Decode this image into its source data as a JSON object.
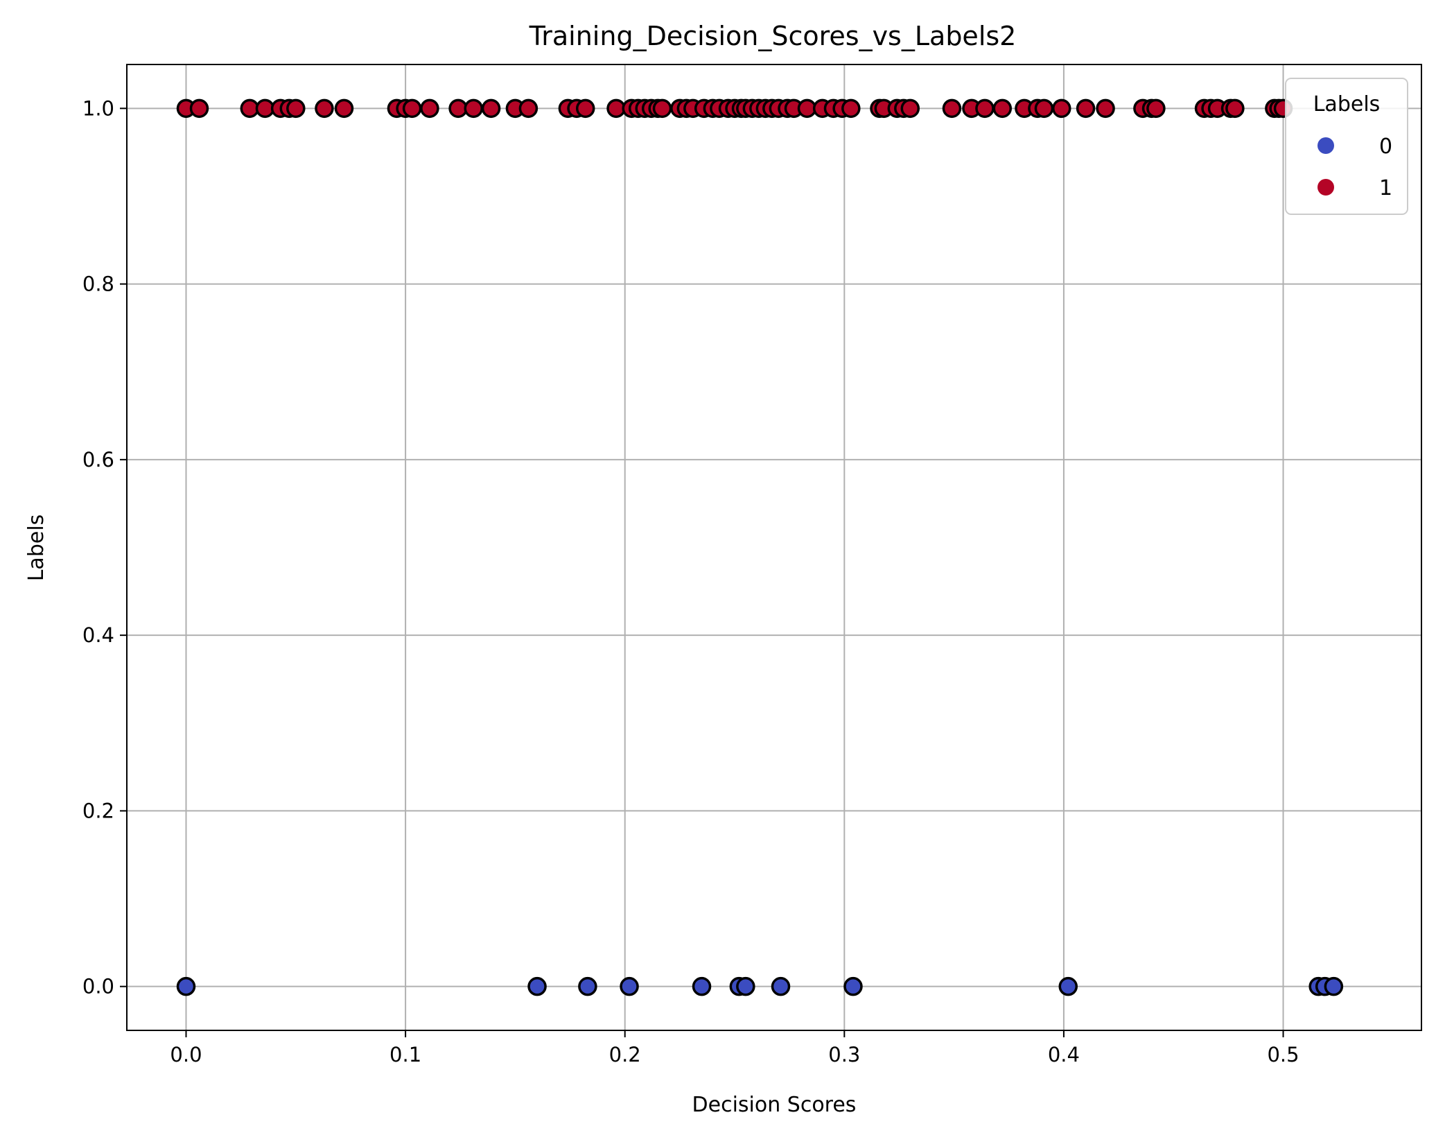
{
  "chart_data": {
    "type": "scatter",
    "title": "Training_Decision_Scores_vs_Labels2",
    "xlabel": "Decision Scores",
    "ylabel": "Labels",
    "xlim": [
      -0.027,
      0.563
    ],
    "ylim": [
      -0.05,
      1.05
    ],
    "x_ticks": [
      0.0,
      0.1,
      0.2,
      0.3,
      0.4,
      0.5
    ],
    "x_tick_labels": [
      "0.0",
      "0.1",
      "0.2",
      "0.3",
      "0.4",
      "0.5"
    ],
    "y_ticks": [
      0.0,
      0.2,
      0.4,
      0.6,
      0.8,
      1.0
    ],
    "y_tick_labels": [
      "0.0",
      "0.2",
      "0.4",
      "0.6",
      "0.8",
      "1.0"
    ],
    "grid": true,
    "legend": {
      "title": "Labels",
      "position": "top-right"
    },
    "series": [
      {
        "name": "0",
        "color": "#3b4cc0",
        "y": 0,
        "x": [
          0.0,
          0.16,
          0.183,
          0.202,
          0.235,
          0.252,
          0.255,
          0.271,
          0.304,
          0.402,
          0.516,
          0.519,
          0.523
        ]
      },
      {
        "name": "1",
        "color": "#b40426",
        "y": 1,
        "x": [
          0.0,
          0.006,
          0.029,
          0.036,
          0.043,
          0.047,
          0.05,
          0.063,
          0.072,
          0.096,
          0.1,
          0.103,
          0.111,
          0.124,
          0.131,
          0.139,
          0.15,
          0.156,
          0.174,
          0.178,
          0.182,
          0.196,
          0.203,
          0.206,
          0.209,
          0.212,
          0.215,
          0.217,
          0.225,
          0.228,
          0.231,
          0.236,
          0.24,
          0.243,
          0.247,
          0.25,
          0.253,
          0.255,
          0.258,
          0.261,
          0.264,
          0.267,
          0.27,
          0.274,
          0.277,
          0.283,
          0.29,
          0.295,
          0.299,
          0.303,
          0.316,
          0.318,
          0.324,
          0.327,
          0.33,
          0.349,
          0.358,
          0.364,
          0.372,
          0.382,
          0.388,
          0.391,
          0.399,
          0.41,
          0.419,
          0.436,
          0.44,
          0.442,
          0.464,
          0.467,
          0.47,
          0.476,
          0.478,
          0.496,
          0.498,
          0.5
        ]
      }
    ]
  }
}
